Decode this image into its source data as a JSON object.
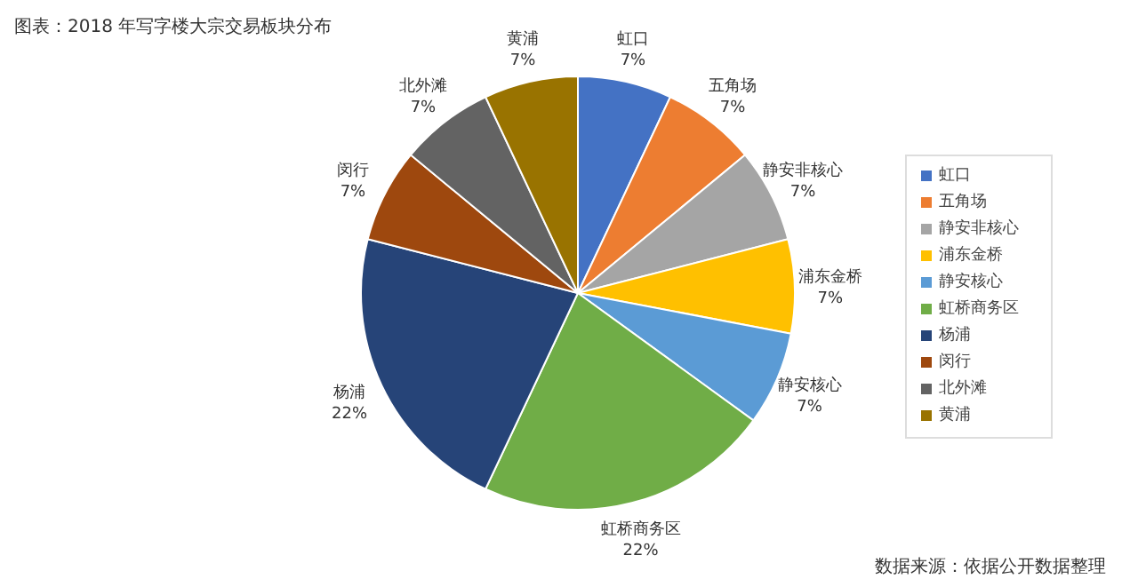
{
  "chart_data": {
    "type": "pie",
    "title": "图表：2018 年写字楼大宗交易板块分布",
    "categories": [
      "虹口",
      "五角场",
      "静安非核心",
      "浦东金桥",
      "静安核心",
      "虹桥商务区",
      "杨浦",
      "闵行",
      "北外滩",
      "黄浦"
    ],
    "values": [
      7,
      7,
      7,
      7,
      7,
      22,
      22,
      7,
      7,
      7
    ],
    "value_labels": [
      "7%",
      "7%",
      "7%",
      "7%",
      "7%",
      "22%",
      "22%",
      "7%",
      "7%",
      "7%"
    ],
    "colors": [
      "#4472c4",
      "#ed7d31",
      "#a5a5a5",
      "#ffc000",
      "#5b9bd5",
      "#70ad47",
      "#264478",
      "#9e480e",
      "#636363",
      "#997300"
    ],
    "legend": "right",
    "annotations": [
      "数据来源：依据公开数据整理"
    ]
  }
}
